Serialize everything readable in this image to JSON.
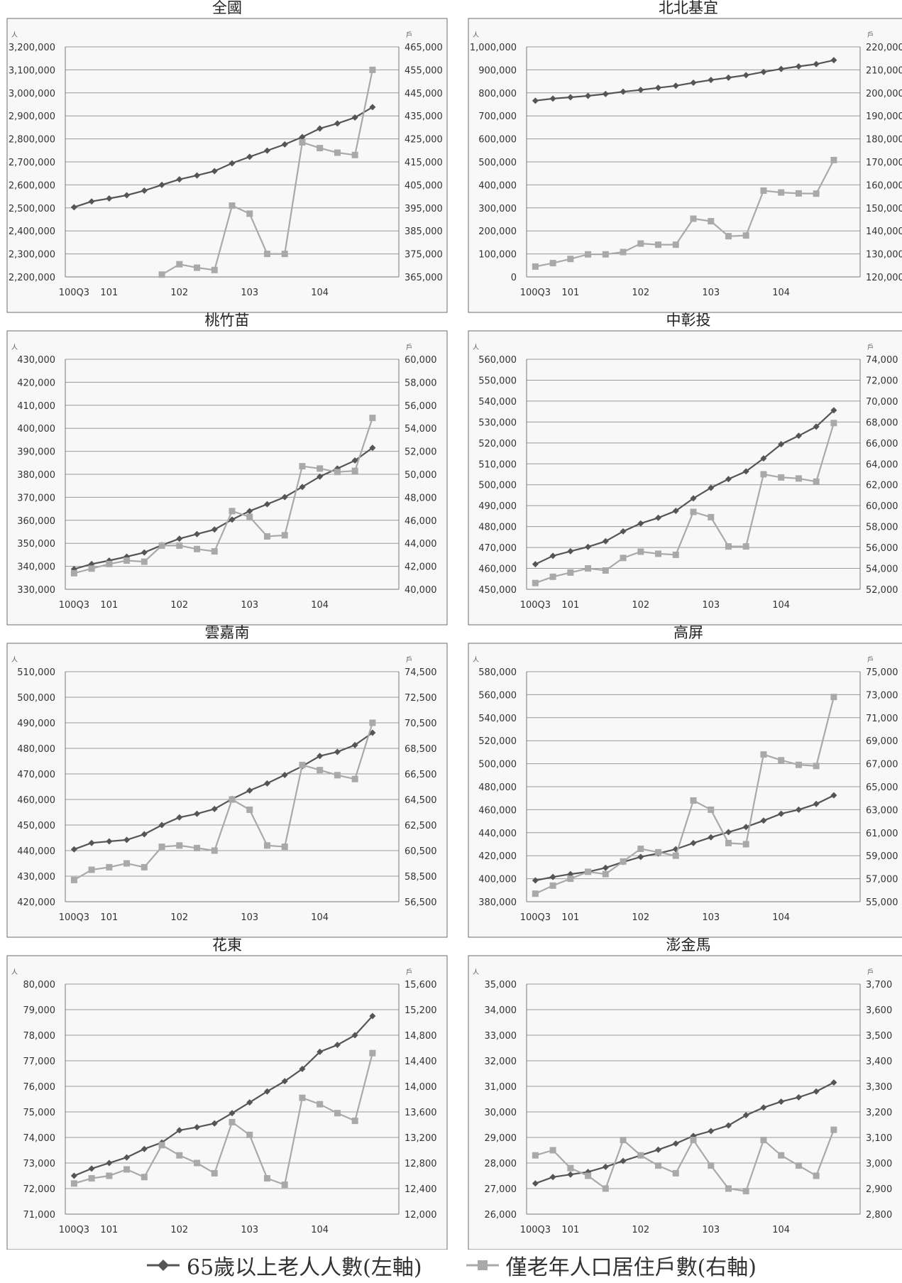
{
  "x_categories": [
    "100Q3",
    "100Q4",
    "101Q1",
    "101Q2",
    "101Q3",
    "101Q4",
    "102Q1",
    "102Q2",
    "102Q3",
    "102Q4",
    "103Q1",
    "103Q2",
    "103Q3",
    "103Q4",
    "104Q1",
    "104Q2",
    "104Q3",
    "104Q4",
    "105Q1"
  ],
  "x_tick_labels": [
    {
      "index": 0,
      "label": "100Q3"
    },
    {
      "index": 2,
      "label": "101"
    },
    {
      "index": 6,
      "label": "102"
    },
    {
      "index": 10,
      "label": "103"
    },
    {
      "index": 14,
      "label": "104"
    }
  ],
  "left_unit": "人",
  "right_unit": "戶",
  "colors": {
    "series_elderly": "#555555",
    "series_households": "#a9a9a9",
    "plot_bg": "#f8f8f8",
    "grid": "#9a9a9a",
    "frame": "#6e6e6e"
  },
  "legend": {
    "elderly": "65歲以上老人人數(左軸)",
    "households": "僅老年人口居住戶數(右軸)"
  },
  "chart_data": [
    {
      "type": "line",
      "title": "全國",
      "ylim_left": [
        2200000,
        3200000
      ],
      "yticks_left": [
        "2,200,000",
        "2,300,000",
        "2,400,000",
        "2,500,000",
        "2,600,000",
        "2,700,000",
        "2,800,000",
        "2,900,000",
        "3,000,000",
        "3,100,000",
        "3,200,000"
      ],
      "ylim_right": [
        365000,
        465000
      ],
      "yticks_right": [
        "365,000",
        "375,000",
        "385,000",
        "395,000",
        "405,000",
        "415,000",
        "425,000",
        "435,000",
        "445,000",
        "455,000",
        "465,000"
      ],
      "series": [
        {
          "name": "65歲以上老人人數(左軸)",
          "axis": "left",
          "values": [
            2503000,
            2528000,
            2541000,
            2555000,
            2575000,
            2600000,
            2624000,
            2641000,
            2660000,
            2694000,
            2722000,
            2749000,
            2776000,
            2808000,
            2845000,
            2867000,
            2893000,
            2938000,
            null
          ]
        },
        {
          "name": "僅老年人口居住戶數(右軸)",
          "axis": "right",
          "values": [
            null,
            null,
            null,
            null,
            null,
            366000,
            370500,
            369000,
            368000,
            396000,
            392500,
            375000,
            375000,
            423500,
            421000,
            419000,
            418000,
            455000,
            null
          ]
        }
      ]
    },
    {
      "type": "line",
      "title": "北北基宜",
      "ylim_left": [
        0,
        1000000
      ],
      "yticks_left": [
        "0",
        "100,000",
        "200,000",
        "300,000",
        "400,000",
        "500,000",
        "600,000",
        "700,000",
        "800,000",
        "900,000",
        "1,000,000"
      ],
      "ylim_right": [
        120000,
        220000
      ],
      "yticks_right": [
        "120,000",
        "130,000",
        "140,000",
        "150,000",
        "160,000",
        "170,000",
        "180,000",
        "190,000",
        "200,000",
        "210,000",
        "220,000"
      ],
      "series": [
        {
          "name": "65歲以上老人人數(左軸)",
          "axis": "left",
          "values": [
            766000,
            775000,
            781000,
            787000,
            795000,
            805000,
            813000,
            822000,
            831000,
            844000,
            856000,
            866000,
            877000,
            891000,
            904000,
            915000,
            925000,
            942000,
            null
          ]
        },
        {
          "name": "僅老年人口居住戶數(右軸)",
          "axis": "right",
          "values": [
            124500,
            126000,
            127800,
            129800,
            129800,
            130800,
            134500,
            134000,
            134000,
            145300,
            144200,
            137700,
            138000,
            157500,
            156700,
            156300,
            156200,
            170800,
            null
          ]
        }
      ]
    },
    {
      "type": "line",
      "title": "桃竹苗",
      "ylim_left": [
        330000,
        430000
      ],
      "yticks_left": [
        "330,000",
        "340,000",
        "350,000",
        "360,000",
        "370,000",
        "380,000",
        "390,000",
        "400,000",
        "410,000",
        "420,000",
        "430,000"
      ],
      "ylim_right": [
        40000,
        60000
      ],
      "yticks_right": [
        "40,000",
        "42,000",
        "44,000",
        "46,000",
        "48,000",
        "50,000",
        "52,000",
        "54,000",
        "56,000",
        "58,000",
        "60,000"
      ],
      "series": [
        {
          "name": "65歲以上老人人數(左軸)",
          "axis": "left",
          "values": [
            338800,
            341000,
            342500,
            344200,
            346000,
            349200,
            352000,
            354000,
            356000,
            360300,
            364000,
            367000,
            370100,
            374500,
            379000,
            382500,
            386000,
            391500,
            null
          ]
        },
        {
          "name": "僅老年人口居住戶數(右軸)",
          "axis": "right",
          "values": [
            41400,
            41800,
            42200,
            42500,
            42400,
            43800,
            43800,
            43500,
            43300,
            46800,
            46300,
            44600,
            44700,
            50700,
            50500,
            50200,
            50300,
            54900,
            null
          ]
        }
      ]
    },
    {
      "type": "line",
      "title": "中彰投",
      "ylim_left": [
        450000,
        560000
      ],
      "yticks_left": [
        "450,000",
        "460,000",
        "470,000",
        "480,000",
        "490,000",
        "500,000",
        "510,000",
        "520,000",
        "530,000",
        "540,000",
        "550,000",
        "560,000"
      ],
      "ylim_right": [
        52000,
        74000
      ],
      "yticks_right": [
        "52,000",
        "54,000",
        "56,000",
        "58,000",
        "60,000",
        "62,000",
        "64,000",
        "66,000",
        "68,000",
        "70,000",
        "72,000",
        "74,000"
      ],
      "series": [
        {
          "name": "65歲以上老人人數(左軸)",
          "axis": "left",
          "values": [
            462000,
            466000,
            468200,
            470300,
            473000,
            477700,
            481500,
            484200,
            487500,
            493500,
            498500,
            502700,
            506400,
            512600,
            519400,
            523400,
            527800,
            535600,
            null
          ]
        },
        {
          "name": "僅老年人口居住戶數(右軸)",
          "axis": "right",
          "values": [
            52600,
            53200,
            53600,
            54000,
            53800,
            55000,
            55600,
            55400,
            55300,
            59400,
            58900,
            56100,
            56100,
            63000,
            62700,
            62600,
            62300,
            67900,
            null
          ]
        }
      ]
    },
    {
      "type": "line",
      "title": "雲嘉南",
      "ylim_left": [
        420000,
        510000
      ],
      "yticks_left": [
        "420,000",
        "430,000",
        "440,000",
        "450,000",
        "460,000",
        "470,000",
        "480,000",
        "490,000",
        "500,000",
        "510,000"
      ],
      "ylim_right": [
        56500,
        74500
      ],
      "yticks_right": [
        "56,500",
        "58,500",
        "60,500",
        "62,500",
        "64,500",
        "66,500",
        "68,500",
        "70,500",
        "72,500",
        "74,500"
      ],
      "series": [
        {
          "name": "65歲以上老人人數(左軸)",
          "axis": "left",
          "values": [
            440500,
            443000,
            443600,
            444200,
            446400,
            450000,
            453000,
            454400,
            456300,
            460200,
            463500,
            466300,
            469600,
            473000,
            477000,
            478600,
            481300,
            486100,
            null
          ]
        },
        {
          "name": "僅老年人口居住戶數(右軸)",
          "axis": "right",
          "values": [
            58200,
            59000,
            59200,
            59500,
            59200,
            60800,
            60900,
            60700,
            60500,
            64500,
            63700,
            60900,
            60800,
            67200,
            66800,
            66400,
            66100,
            70500,
            null
          ]
        }
      ]
    },
    {
      "type": "line",
      "title": "高屏",
      "ylim_left": [
        380000,
        580000
      ],
      "yticks_left": [
        "380,000",
        "400,000",
        "420,000",
        "440,000",
        "460,000",
        "480,000",
        "500,000",
        "520,000",
        "540,000",
        "560,000",
        "580,000"
      ],
      "ylim_right": [
        55000,
        75000
      ],
      "yticks_right": [
        "55,000",
        "57,000",
        "59,000",
        "61,000",
        "63,000",
        "65,000",
        "67,000",
        "69,000",
        "71,000",
        "73,000",
        "75,000"
      ],
      "series": [
        {
          "name": "65歲以上老人人數(左軸)",
          "axis": "left",
          "values": [
            398500,
            401500,
            404000,
            406000,
            409500,
            414500,
            419000,
            422000,
            425700,
            431000,
            436000,
            440500,
            445000,
            450500,
            456500,
            460000,
            465000,
            472500,
            null
          ]
        },
        {
          "name": "僅老年人口居住戶數(右軸)",
          "axis": "right",
          "values": [
            55700,
            56400,
            57000,
            57600,
            57400,
            58500,
            59600,
            59300,
            59000,
            63800,
            63000,
            60100,
            60000,
            67800,
            67300,
            66900,
            66800,
            72800,
            null
          ]
        }
      ]
    },
    {
      "type": "line",
      "title": "花東",
      "ylim_left": [
        71000,
        80000
      ],
      "yticks_left": [
        "71,000",
        "72,000",
        "73,000",
        "74,000",
        "75,000",
        "76,000",
        "77,000",
        "78,000",
        "79,000",
        "80,000"
      ],
      "ylim_right": [
        12000,
        15600
      ],
      "yticks_right": [
        "12,000",
        "12,400",
        "12,800",
        "13,200",
        "13,600",
        "14,000",
        "14,400",
        "14,800",
        "15,200",
        "15,600"
      ],
      "series": [
        {
          "name": "65歲以上老人人數(左軸)",
          "axis": "left",
          "values": [
            72500,
            72780,
            73000,
            73220,
            73550,
            73800,
            74280,
            74400,
            74550,
            74950,
            75370,
            75800,
            76200,
            76680,
            77350,
            77620,
            78000,
            78750,
            null
          ]
        },
        {
          "name": "僅老年人口居住戶數(右軸)",
          "axis": "right",
          "values": [
            12480,
            12560,
            12600,
            12700,
            12580,
            13080,
            12920,
            12800,
            12640,
            13440,
            13240,
            12560,
            12460,
            13820,
            13720,
            13580,
            13460,
            14520,
            null
          ]
        }
      ]
    },
    {
      "type": "line",
      "title": "澎金馬",
      "ylim_left": [
        26000,
        35000
      ],
      "yticks_left": [
        "26,000",
        "27,000",
        "28,000",
        "29,000",
        "30,000",
        "31,000",
        "32,000",
        "33,000",
        "34,000",
        "35,000"
      ],
      "ylim_right": [
        2800,
        3700
      ],
      "yticks_right": [
        "2,800",
        "2,900",
        "3,000",
        "3,100",
        "3,200",
        "3,300",
        "3,400",
        "3,500",
        "3,600",
        "3,700"
      ],
      "series": [
        {
          "name": "65歲以上老人人數(左軸)",
          "axis": "left",
          "values": [
            27200,
            27450,
            27550,
            27650,
            27850,
            28080,
            28300,
            28520,
            28760,
            29060,
            29250,
            29470,
            29870,
            30170,
            30400,
            30570,
            30800,
            31150,
            null
          ]
        },
        {
          "name": "僅老年人口居住戶數(右軸)",
          "axis": "right",
          "values": [
            3030,
            3050,
            2980,
            2950,
            2900,
            3090,
            3030,
            2990,
            2960,
            3090,
            2990,
            2900,
            2890,
            3090,
            3030,
            2990,
            2950,
            3130,
            null
          ]
        }
      ]
    }
  ]
}
